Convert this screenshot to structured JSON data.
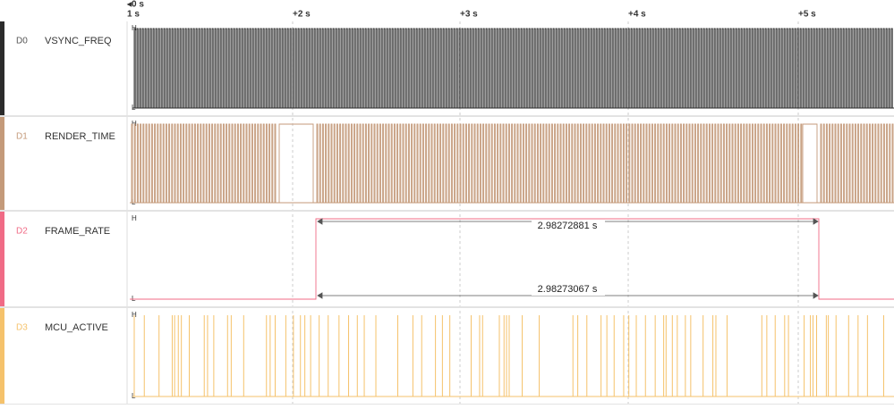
{
  "ruler": {
    "start": "◂0 s",
    "labels": [
      "1 s",
      "+2 s",
      "+3 s",
      "+4 s",
      "+5 s"
    ]
  },
  "channels": [
    {
      "id": "D0",
      "name": "VSYNC_FREQ",
      "high": "H",
      "low": "L"
    },
    {
      "id": "D1",
      "name": "RENDER_TIME",
      "high": "H",
      "low": "L"
    },
    {
      "id": "D2",
      "name": "FRAME_RATE",
      "high": "H",
      "low": "L",
      "measurements": [
        "2.98272881 s",
        "2.98273067 s"
      ]
    },
    {
      "id": "D3",
      "name": "MCU_ACTIVE",
      "high": "H",
      "low": "L"
    }
  ]
}
